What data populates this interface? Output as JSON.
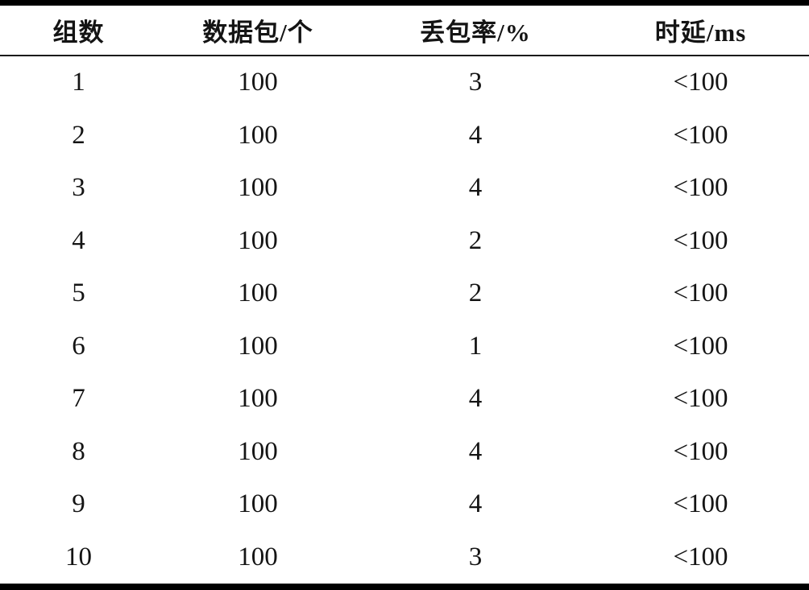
{
  "page": {
    "background": "#ffffff"
  },
  "colors": {
    "text": "#141414",
    "rule_heavy": "#000000",
    "rule_light": "#1a1a1a"
  },
  "table": {
    "style": "three-line-table",
    "columns": [
      {
        "key": "group",
        "label": "组数"
      },
      {
        "key": "packets",
        "label": "数据包/个"
      },
      {
        "key": "loss",
        "label": "丢包率/%"
      },
      {
        "key": "delay",
        "label": "时延/ms"
      }
    ],
    "rows": [
      {
        "group": "1",
        "packets": "100",
        "loss": "3",
        "delay": "<100"
      },
      {
        "group": "2",
        "packets": "100",
        "loss": "4",
        "delay": "<100"
      },
      {
        "group": "3",
        "packets": "100",
        "loss": "4",
        "delay": "<100"
      },
      {
        "group": "4",
        "packets": "100",
        "loss": "2",
        "delay": "<100"
      },
      {
        "group": "5",
        "packets": "100",
        "loss": "2",
        "delay": "<100"
      },
      {
        "group": "6",
        "packets": "100",
        "loss": "1",
        "delay": "<100"
      },
      {
        "group": "7",
        "packets": "100",
        "loss": "4",
        "delay": "<100"
      },
      {
        "group": "8",
        "packets": "100",
        "loss": "4",
        "delay": "<100"
      },
      {
        "group": "9",
        "packets": "100",
        "loss": "4",
        "delay": "<100"
      },
      {
        "group": "10",
        "packets": "100",
        "loss": "3",
        "delay": "<100"
      }
    ]
  }
}
